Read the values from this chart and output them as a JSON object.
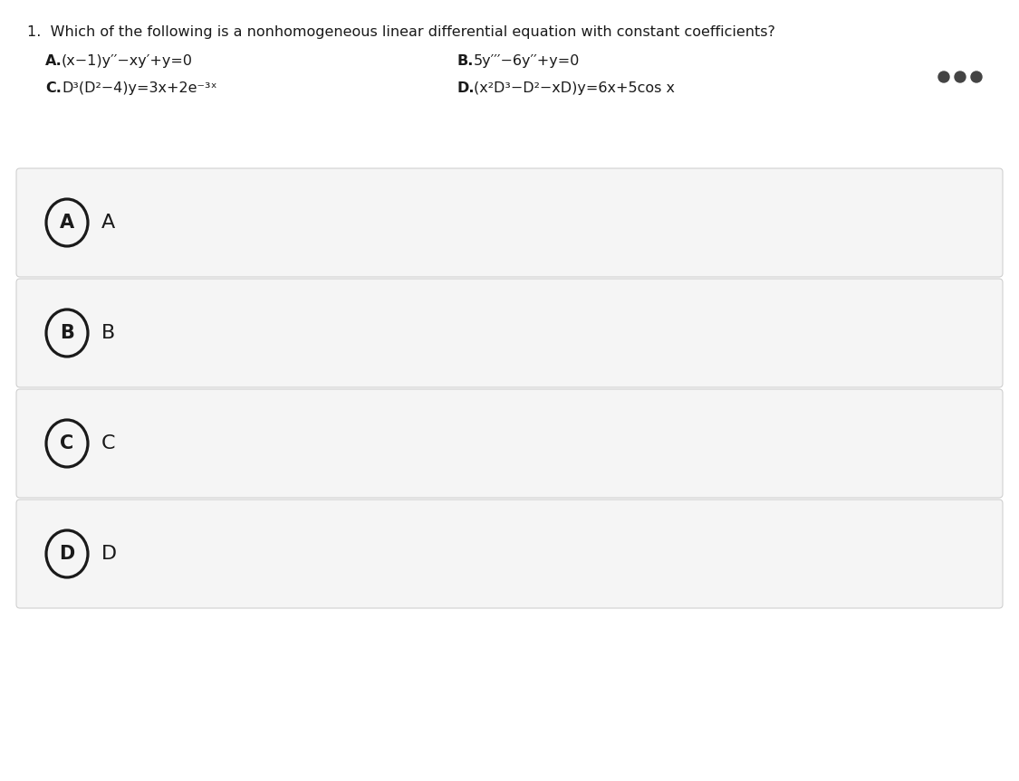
{
  "title_line1": "1.  Which of the following is a nonhomogeneous linear differential equation with constant coefficients?",
  "option_A_label": "A.",
  "option_A_text": "(x−1)y′′−xy′+y=0",
  "option_B_label": "B.",
  "option_B_text": "5y′′′−6y′′+y=0",
  "option_C_label": "C.",
  "option_C_text": "D³(D²−4)y=3x+2e⁻³ˣ",
  "option_D_label": "D.",
  "option_D_text": "(x²D³−D²−xD)y=6x+5cos x",
  "choices": [
    "A",
    "B",
    "C",
    "D"
  ],
  "bg_color": "#ffffff",
  "box_bg_color": "#f5f5f5",
  "box_border_color": "#d0d0d0",
  "text_color": "#1a1a1a",
  "circle_color": "#1a1a1a",
  "dots_color": "#444444",
  "title_fontsize": 11.5,
  "option_fontsize": 11.5,
  "choice_fontsize": 16,
  "circle_label_fontsize": 15
}
